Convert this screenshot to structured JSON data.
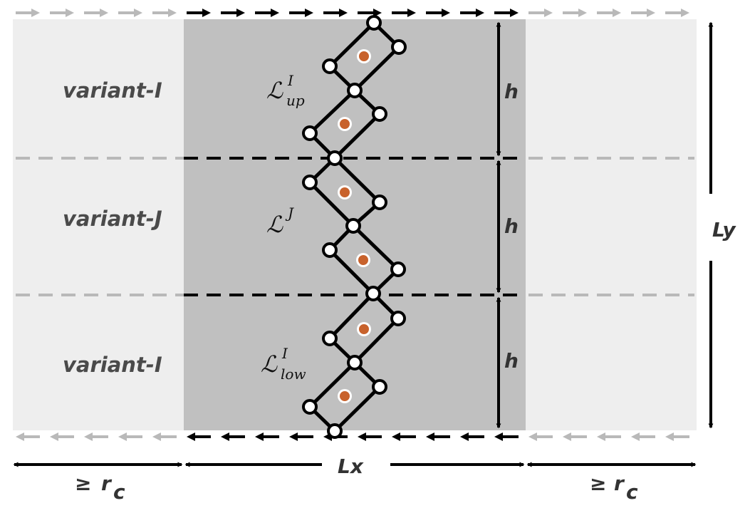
{
  "diagram": {
    "regions": [
      {
        "id": "upper",
        "label": "variant-I",
        "lattice_base": "ℒ",
        "lattice_sup": "I",
        "lattice_sub": "up",
        "height_label": "h"
      },
      {
        "id": "middle",
        "label": "variant-J",
        "lattice_base": "ℒ",
        "lattice_sup": "J",
        "lattice_sub": "",
        "height_label": "h"
      },
      {
        "id": "lower",
        "label": "variant-I",
        "lattice_base": "ℒ",
        "lattice_sup": "I",
        "lattice_sub": "low",
        "height_label": "h"
      }
    ],
    "dimensions": {
      "ly": "Ly",
      "lx": "Lx",
      "left_margin_ge": "≥",
      "left_margin_r": "r",
      "left_margin_sub": "c",
      "right_margin_ge": "≥",
      "right_margin_r": "r",
      "right_margin_sub": "c"
    },
    "colors": {
      "buffer_fill": "#eeeeee",
      "core_fill": "#c0c0c0",
      "inner_atom": "#c8622c",
      "boundary_faded": "#b9b9b9",
      "boundary_dark": "#000000"
    }
  }
}
